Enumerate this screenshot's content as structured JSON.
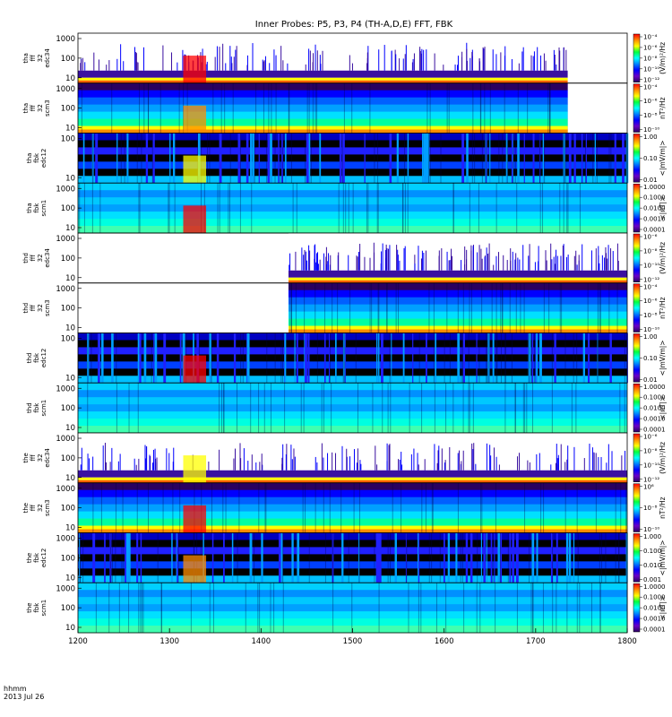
{
  "chart_data": {
    "type": "heatmap",
    "title": "Inner Probes: P5, P3, P4 (TH-A,D,E) FFT, FBK",
    "x_ticks": [
      "1200",
      "1300",
      "1400",
      "1500",
      "1600",
      "1700",
      "1800"
    ],
    "xlim": [
      1200,
      1800
    ],
    "x_footer": [
      "hhmm",
      "2013 Jul 26"
    ],
    "panels": [
      {
        "label": [
          "tha",
          "fff",
          "32",
          "edc34"
        ],
        "yticks": [
          "1000",
          "100",
          "10"
        ],
        "ylog": true,
        "data_range": [
          1200,
          1735
        ],
        "cb_ticks": [
          "10⁻⁴",
          "10⁻⁶",
          "10⁻⁸",
          "10⁻¹⁰",
          "10⁻¹²"
        ],
        "cb_unit": "(V/m)²/Hz",
        "style": "sparse"
      },
      {
        "label": [
          "tha",
          "fff",
          "32",
          "scm3"
        ],
        "yticks": [
          "1000",
          "100",
          "10"
        ],
        "ylog": true,
        "data_range": [
          1200,
          1735
        ],
        "cb_ticks": [
          "10⁻⁴",
          "10⁻⁶",
          "10⁻⁸",
          "10⁻¹⁰"
        ],
        "cb_unit": "nT²/Hz",
        "style": "banded"
      },
      {
        "label": [
          "tha",
          "fbk",
          "edc12"
        ],
        "yticks": [
          "100",
          "10"
        ],
        "ylog": true,
        "data_range": [
          1200,
          1800
        ],
        "cb_ticks": [
          "1.00",
          "0.10",
          "0.01"
        ],
        "cb_unit": "<|mV/m|>",
        "style": "fbk"
      },
      {
        "label": [
          "tha",
          "fbk",
          "scm1"
        ],
        "yticks": [
          "1000",
          "100",
          "10"
        ],
        "ylog": true,
        "data_range": [
          1200,
          1800
        ],
        "cb_ticks": [
          "1.0000",
          "0.1000",
          "0.0100",
          "0.0010",
          "0.0001"
        ],
        "cb_unit": "<|nT|>",
        "style": "cool"
      },
      {
        "label": [
          "thd",
          "fff",
          "32",
          "edc34"
        ],
        "yticks": [
          "1000",
          "100",
          "10"
        ],
        "ylog": true,
        "data_range": [
          1430,
          1800
        ],
        "cb_ticks": [
          "10⁻⁶",
          "10⁻⁸",
          "10⁻¹⁰",
          "10⁻¹²"
        ],
        "cb_unit": "(V/m)²/Hz",
        "style": "sparse"
      },
      {
        "label": [
          "thd",
          "fff",
          "32",
          "scm3"
        ],
        "yticks": [
          "1000",
          "100",
          "10"
        ],
        "ylog": true,
        "data_range": [
          1430,
          1800
        ],
        "cb_ticks": [
          "10⁻⁴",
          "10⁻⁶",
          "10⁻⁸",
          "10⁻¹⁰"
        ],
        "cb_unit": "nT²/Hz",
        "style": "banded"
      },
      {
        "label": [
          "thd",
          "fbk",
          "edc12"
        ],
        "yticks": [
          "100",
          "10"
        ],
        "ylog": true,
        "data_range": [
          1200,
          1800
        ],
        "cb_ticks": [
          "1.00",
          "0.10",
          "0.01"
        ],
        "cb_unit": "<|mV/m|>",
        "style": "fbk"
      },
      {
        "label": [
          "thd",
          "fbk",
          "scm1"
        ],
        "yticks": [
          "1000",
          "100",
          "10"
        ],
        "ylog": true,
        "data_range": [
          1200,
          1800
        ],
        "cb_ticks": [
          "1.0000",
          "0.1000",
          "0.0100",
          "0.0010",
          "0.0001"
        ],
        "cb_unit": "<|nT|>",
        "style": "cool"
      },
      {
        "label": [
          "the",
          "fff",
          "32",
          "edc34"
        ],
        "yticks": [
          "1000",
          "100",
          "10"
        ],
        "ylog": true,
        "data_range": [
          1200,
          1800
        ],
        "cb_ticks": [
          "10⁻⁶",
          "10⁻⁸",
          "10⁻¹⁰",
          "10⁻¹²"
        ],
        "cb_unit": "(V/m)²/Hz",
        "style": "sparse"
      },
      {
        "label": [
          "the",
          "fff",
          "32",
          "scm3"
        ],
        "yticks": [
          "1000",
          "100",
          "10"
        ],
        "ylog": true,
        "data_range": [
          1200,
          1800
        ],
        "cb_ticks": [
          "10⁶",
          "10⁻⁸",
          "10⁻¹⁰"
        ],
        "cb_unit": "nT²/Hz",
        "style": "banded"
      },
      {
        "label": [
          "the",
          "fbk",
          "edc12"
        ],
        "yticks": [
          "1000",
          "100",
          "10"
        ],
        "ylog": true,
        "data_range": [
          1200,
          1800
        ],
        "cb_ticks": [
          "1.000",
          "0.100",
          "0.010",
          "0.001"
        ],
        "cb_unit": "<|mV/m|>",
        "style": "fbk"
      },
      {
        "label": [
          "the",
          "fbk",
          "scm1"
        ],
        "yticks": [
          "1000",
          "100",
          "10"
        ],
        "ylog": true,
        "data_range": [
          1200,
          1800
        ],
        "cb_ticks": [
          "1.0000",
          "0.1000",
          "0.0100",
          "0.0010",
          "0.0001"
        ],
        "cb_unit": "<|nT|>",
        "style": "cool"
      }
    ],
    "colorbar_colors": [
      "#ff0000",
      "#ff8c00",
      "#ffff00",
      "#00ff40",
      "#00ffff",
      "#0080ff",
      "#0000ff",
      "#6a00c8",
      "#2a0060"
    ]
  }
}
